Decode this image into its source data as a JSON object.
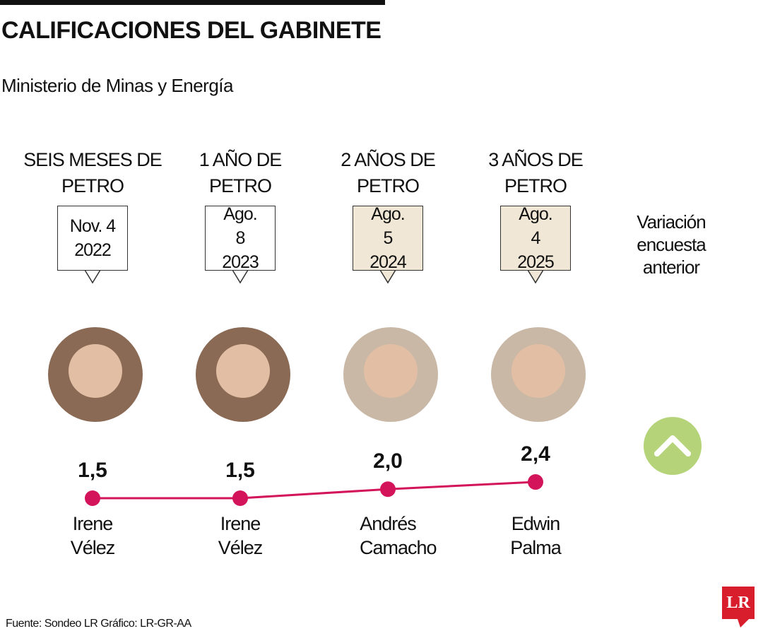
{
  "chart_data": {
    "type": "line",
    "title": "CALIFICACIONES DEL GABINETE",
    "subtitle": "Ministerio de Minas y Energía",
    "categories": [
      "SEIS MESES DE PETRO",
      "1 AÑO DE PETRO",
      "2 AÑOS DE PETRO",
      "3 AÑOS DE PETRO"
    ],
    "dates": [
      "Nov. 4 2022",
      "Ago. 8 2023",
      "Ago. 5 2024",
      "Ago. 4 2025"
    ],
    "ministers": [
      "Irene Vélez",
      "Irene Vélez",
      "Andrés Camacho",
      "Edwin Palma"
    ],
    "values": [
      1.5,
      1.5,
      2.0,
      2.4
    ],
    "value_labels": [
      "1,5",
      "1,5",
      "2,0",
      "2,4"
    ],
    "color": "#d4145a",
    "variation_label": "Variación encuesta anterior",
    "source": "Fuente: Sondeo LR Gráfico: LR-GR-AA"
  },
  "logo": "LR"
}
